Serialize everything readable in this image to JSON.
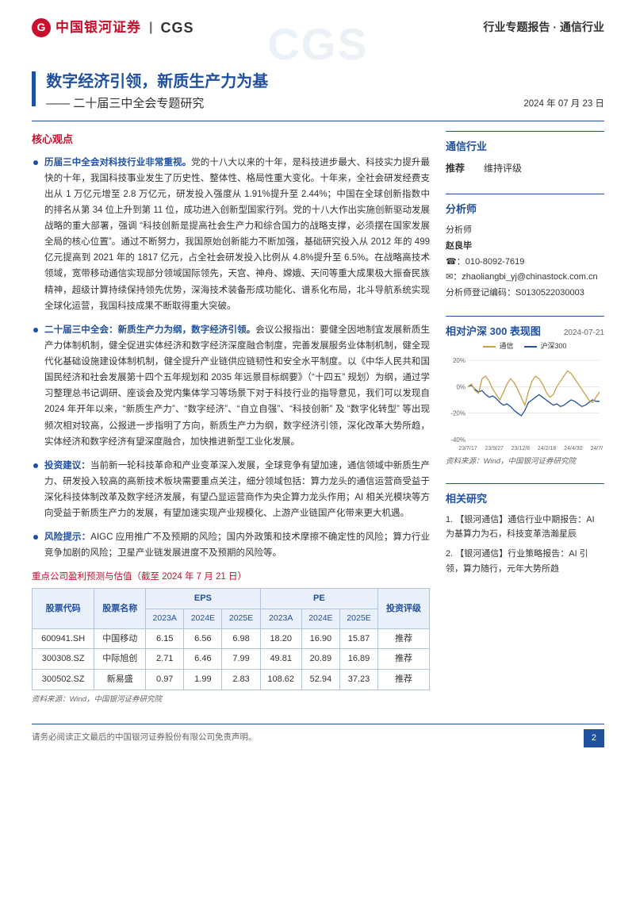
{
  "header": {
    "logo_cn": "中国银河证券",
    "logo_en": "CGS",
    "right": "行业专题报告 · 通信行业"
  },
  "title": {
    "main": "数字经济引领，新质生产力为基",
    "sub": "—— 二十届三中全会专题研究",
    "date": "2024 年 07 月 23 日"
  },
  "core": {
    "heading": "核心观点",
    "bullets": [
      {
        "lead": "历届三中全会对科技行业非常重视。",
        "body": "党的十八大以来的十年，是科技进步最大、科技实力提升最快的十年，我国科技事业发生了历史性、整体性、格局性重大变化。十年来，全社会研发经费支出从 1 万亿元增至 2.8 万亿元，研发投入强度从 1.91%提升至 2.44%；中国在全球创新指数中的排名从第 34 位上升到第 11 位，成功进入创新型国家行列。党的十八大作出实施创新驱动发展战略的重大部署，强调 “科技创新是提高社会生产力和综合国力的战略支撑，必须摆在国家发展全局的核心位置”。通过不断努力，我国原始创新能力不断加强，基础研究投入从 2012 年的 499 亿元提高到 2021 年的 1817 亿元，占全社会研发投入比例从 4.8%提升至 6.5%。在战略高技术领域，宽带移动通信实现部分领域国际领先，天宫、神舟、嫦娥、天问等重大成果极大振奋民族精神，超级计算持续保持领先优势，深海技术装备形成功能化、谱系化布局，北斗导航系统实现全球化运营，我国科技成果不断取得重大突破。"
      },
      {
        "lead": "二十届三中全会：新质生产力为纲，数字经济引领。",
        "body": "会议公报指出：要健全因地制宜发展新质生产力体制机制，健全促进实体经济和数字经济深度融合制度，完善发展服务业体制机制，健全现代化基础设施建设体制机制，健全提升产业链供应链韧性和安全水平制度。以《中华人民共和国国民经济和社会发展第十四个五年规划和 2035 年远景目标纲要》（“十四五” 规划）为纲，通过学习整理总书记调研、座谈会及党内集体学习等场景下对于科技行业的指导意见，我们可以发现自 2024 年开年以来，“新质生产力”、“数字经济”、“自立自强”、“科技创新” 及 “数字化转型” 等出现频次相对较高，公报进一步指明了方向，新质生产力为纲，数字经济引领，深化改革大势所趋，实体经济和数字经济有望深度融合，加快推进新型工业化发展。"
      },
      {
        "lead": "投资建议：",
        "body": "当前新一轮科技革命和产业变革深入发展，全球竞争有望加速，通信领域中新质生产力、研发投入较高的高新技术板块需要重点关注，细分领域包括：算力龙头的通信运营商受益于深化科技体制改革及数字经济发展，有望凸显运营商作为央企算力龙头作用；AI 相关光模块等方向受益于新质生产力的发展，有望加速实现产业规模化、上游产业链国产化带来更大机遇。"
      },
      {
        "lead": "风险提示：",
        "body": "AIGC 应用推广不及预期的风险；国内外政策和技术摩擦不确定性的风险；算力行业竞争加剧的风险；卫星产业链发展进度不及预期的风险等。"
      }
    ]
  },
  "sidebar": {
    "industry": {
      "title": "通信行业",
      "rec_label": "推荐",
      "rec_value": "维持评级"
    },
    "analyst": {
      "title": "分析师",
      "role": "分析师",
      "name": "赵良毕",
      "phone_icon": "☎",
      "phone": "010-8092-7619",
      "mail_icon": "✉",
      "email": "zhaoliangbi_yj@chinastock.com.cn",
      "reg": "分析师登记编码：S0130522030003"
    },
    "chart": {
      "title": "相对沪深 300 表现图",
      "date": "2024-07-21",
      "legend1": "通信",
      "legend2": "沪深300",
      "colors": {
        "s1": "#c8a04a",
        "s2": "#2050a0",
        "grid": "#d0d0d0",
        "axis": "#888",
        "bg": "#ffffff"
      },
      "ylim": [
        -40,
        20
      ],
      "ytick_step": 20,
      "yticks": [
        "20%",
        "0%",
        "-20%",
        "-40%"
      ],
      "xticks": [
        "23/7/17",
        "23/9/27",
        "23/12/8",
        "24/2/18",
        "24/4/30",
        "24/7/11"
      ],
      "series1": [
        0,
        2,
        -3,
        -5,
        6,
        8,
        4,
        -2,
        -6,
        -10,
        -4,
        2,
        6,
        3,
        -2,
        -8,
        -14,
        -4,
        4,
        8,
        6,
        2,
        -4,
        -8,
        -6,
        0,
        4,
        8,
        12,
        10,
        6,
        2,
        -2,
        -6,
        -10,
        -12,
        -8,
        -4
      ],
      "series2": [
        0,
        1,
        -2,
        -4,
        -3,
        -6,
        -8,
        -7,
        -9,
        -12,
        -14,
        -13,
        -15,
        -18,
        -20,
        -22,
        -18,
        -12,
        -10,
        -8,
        -6,
        -8,
        -10,
        -12,
        -14,
        -13,
        -15,
        -14,
        -12,
        -10,
        -11,
        -13,
        -15,
        -14,
        -12,
        -10,
        -11,
        -11
      ],
      "source": "资料来源：Wind，中国银河证券研究院"
    },
    "related": {
      "title": "相关研究",
      "items": [
        "1. 【银河通信】通信行业中期报告：AI 为基算力为石，科技变革浩瀚星辰",
        "2. 【银河通信】行业策略报告：AI 引领，算力随行，元年大势所趋"
      ]
    }
  },
  "table": {
    "title": "重点公司盈利预测与估值（截至 2024 年 7 月 21 日）",
    "head_top": [
      "股票代码",
      "股票名称",
      "EPS",
      "PE",
      "投资评级"
    ],
    "head_sub": [
      "2023A",
      "2024E",
      "2025E",
      "2023A",
      "2024E",
      "2025E"
    ],
    "rows": [
      [
        "600941.SH",
        "中国移动",
        "6.15",
        "6.56",
        "6.98",
        "18.20",
        "16.90",
        "15.87",
        "推荐"
      ],
      [
        "300308.SZ",
        "中际旭创",
        "2.71",
        "6.46",
        "7.99",
        "49.81",
        "20.89",
        "16.89",
        "推荐"
      ],
      [
        "300502.SZ",
        "新易盛",
        "0.97",
        "1.99",
        "2.83",
        "108.62",
        "52.94",
        "37.23",
        "推荐"
      ]
    ],
    "source": "资料来源：Wind，中国银河证券研究院"
  },
  "footer": {
    "disclaimer": "请务必阅读正文最后的中国银河证券股份有限公司免责声明。",
    "page": "2"
  }
}
